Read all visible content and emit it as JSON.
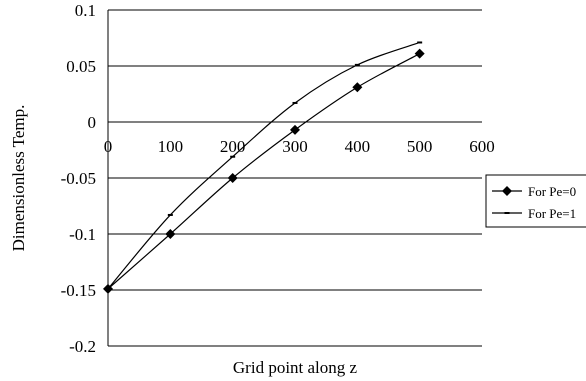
{
  "chart_data": {
    "type": "line",
    "xlabel": "Grid point along z",
    "ylabel": "Dimensionless Temp.",
    "xlim": [
      0,
      600
    ],
    "ylim": [
      -0.2,
      0.1
    ],
    "x_ticks": [
      "0",
      "100",
      "200",
      "300",
      "400",
      "500",
      "600"
    ],
    "y_ticks": [
      "0.1",
      "0.05",
      "0",
      "-0.05",
      "-0.1",
      "-0.15",
      "-0.2"
    ],
    "grid": "horizontal",
    "legend_position": "right",
    "series": [
      {
        "name": "For Pe=0",
        "marker": "diamond",
        "x": [
          0,
          100,
          200,
          300,
          400,
          500
        ],
        "y": [
          -0.149,
          -0.1,
          -0.05,
          -0.007,
          0.031,
          0.061
        ]
      },
      {
        "name": "For Pe=1",
        "marker": "dash",
        "x": [
          0,
          100,
          200,
          300,
          400,
          500
        ],
        "y": [
          -0.149,
          -0.083,
          -0.031,
          0.017,
          0.051,
          0.071
        ]
      }
    ]
  }
}
